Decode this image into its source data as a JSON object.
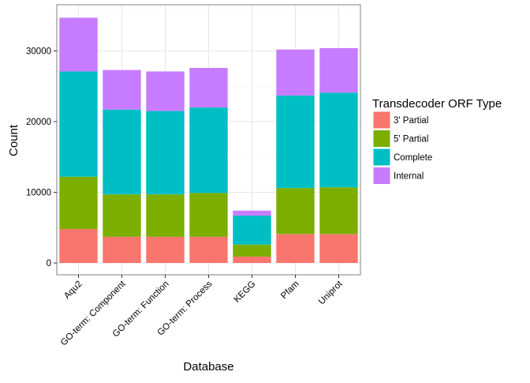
{
  "chart_data": {
    "type": "bar",
    "stacked": true,
    "xlabel": "Database",
    "ylabel": "Count",
    "categories": [
      "Aqu2",
      "GO-term: Component",
      "GO-term: Function",
      "GO-term: Process",
      "KEGG",
      "Pfam",
      "Uniprot"
    ],
    "ylim": [
      0,
      35000
    ],
    "yticks": [
      0,
      10000,
      20000,
      30000
    ],
    "grid": true,
    "legend": {
      "title": "Transdecoder ORF Type",
      "position": "right"
    },
    "series": [
      {
        "name": "3' Partial",
        "color": "#F8766D",
        "values": [
          4800,
          3700,
          3700,
          3700,
          900,
          4100,
          4100
        ]
      },
      {
        "name": "5' Partial",
        "color": "#7CAE00",
        "values": [
          7400,
          6000,
          6000,
          6200,
          1700,
          6500,
          6600
        ]
      },
      {
        "name": "Complete",
        "color": "#00BFC4",
        "values": [
          14900,
          12000,
          11800,
          12100,
          4100,
          13100,
          13400
        ]
      },
      {
        "name": "Internal",
        "color": "#C77CFF",
        "values": [
          7600,
          5600,
          5600,
          5600,
          700,
          6500,
          6300
        ]
      }
    ]
  }
}
